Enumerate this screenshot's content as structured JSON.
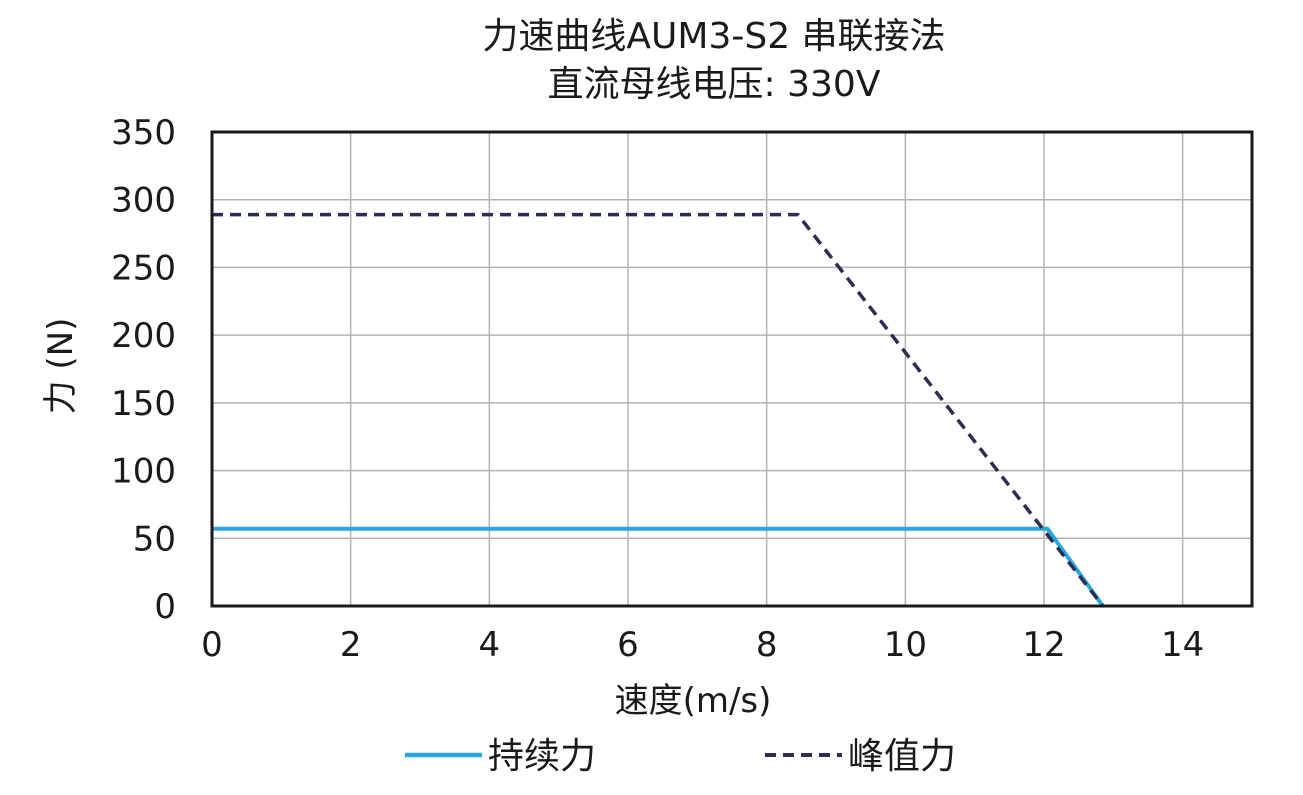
{
  "chart_data": {
    "type": "line",
    "title": "力速曲线AUM3-S2 串联接法",
    "subtitle": "直流母线电压: 330V",
    "xlabel": "速度(m/s)",
    "ylabel": "力 (N)",
    "xlim": [
      0,
      15
    ],
    "ylim": [
      0,
      350
    ],
    "xticks": [
      0,
      2,
      4,
      6,
      8,
      10,
      12,
      14
    ],
    "yticks": [
      0,
      50,
      100,
      150,
      200,
      250,
      300,
      350
    ],
    "grid": true,
    "legend_position": "bottom",
    "series": [
      {
        "name": "持续力",
        "style": "solid",
        "color": "#29a8e0",
        "x": [
          0,
          12.05,
          12.85
        ],
        "y": [
          57,
          57,
          0
        ]
      },
      {
        "name": "峰值力",
        "style": "dashed",
        "color": "#2b2d55",
        "x": [
          0,
          8.45,
          12.85
        ],
        "y": [
          289,
          289,
          0
        ]
      }
    ]
  }
}
